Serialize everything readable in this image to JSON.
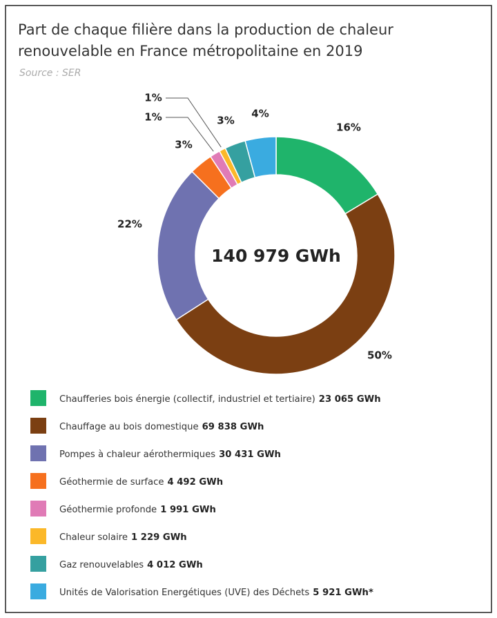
{
  "chart_data": {
    "type": "donut",
    "title": "Part de chaque filière dans la production de chaleur renouvelable en France métropolitaine en 2019",
    "source": "Source : SER",
    "total": 140979,
    "total_label": "140 979 GWh",
    "categories": [
      "Chaufferies bois énergie (collectif, industriel et tertiaire)",
      "Chauffage au bois domestique",
      "Pompes à chaleur aérothermiques",
      "Géothermie de surface",
      "Géothermie profonde",
      "Chaleur solaire",
      "Gaz renouvelables",
      "Unités de Valorisation Energétiques (UVE) des Déchets"
    ],
    "values": [
      23065,
      69838,
      30431,
      4492,
      1991,
      1229,
      4012,
      5921
    ],
    "value_labels": [
      "23 065 GWh",
      "69 838 GWh",
      "30 431 GWh",
      "4 492 GWh",
      "1 991 GWh",
      "1 229 GWh",
      "4 012 GWh",
      "5 921 GWh*"
    ],
    "percentages": [
      16,
      50,
      22,
      3,
      1,
      1,
      3,
      4
    ],
    "percentage_labels": [
      "16%",
      "50%",
      "22%",
      "3%",
      "1%",
      "1%",
      "3%",
      "4%"
    ],
    "colors": [
      "#1fb46b",
      "#7b3f12",
      "#6f72b0",
      "#f6701e",
      "#e07bb6",
      "#fbb829",
      "#35a0a0",
      "#3aabe0"
    ]
  }
}
